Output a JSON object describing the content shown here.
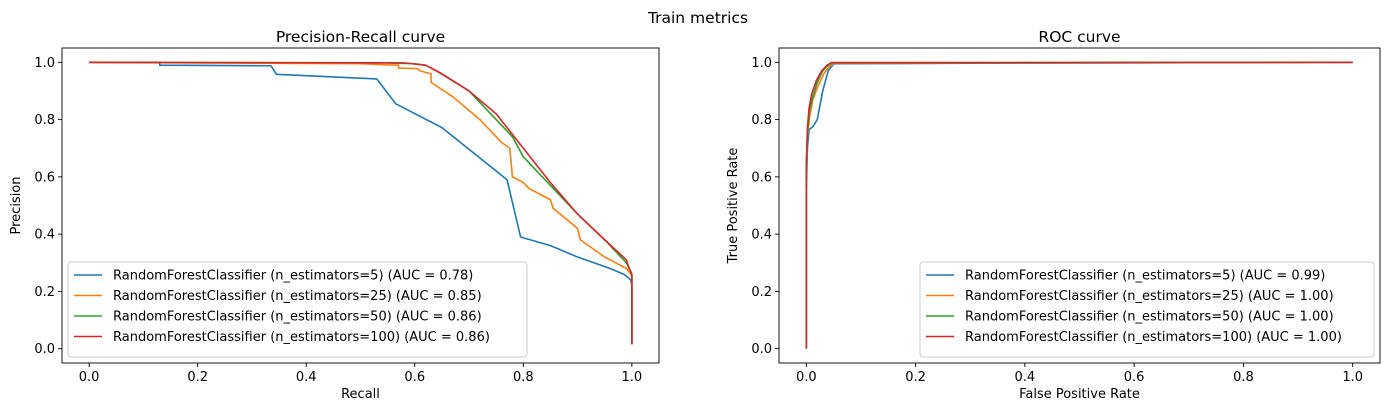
{
  "figure": {
    "suptitle": "Train metrics"
  },
  "colors": {
    "blue": "#1f77b4",
    "orange": "#ff7f0e",
    "green": "#2ca02c",
    "red": "#d62728"
  },
  "chart_data": [
    {
      "type": "line",
      "title": "Precision-Recall curve",
      "xlabel": "Recall",
      "ylabel": "Precision",
      "xlim": [
        -0.05,
        1.05
      ],
      "ylim": [
        -0.05,
        1.05
      ],
      "xticks": [
        0.0,
        0.2,
        0.4,
        0.6,
        0.8,
        1.0
      ],
      "yticks": [
        0.0,
        0.2,
        0.4,
        0.6,
        0.8,
        1.0
      ],
      "xtick_labels": [
        "0.0",
        "0.2",
        "0.4",
        "0.6",
        "0.8",
        "1.0"
      ],
      "ytick_labels": [
        "0.0",
        "0.2",
        "0.4",
        "0.6",
        "0.8",
        "1.0"
      ],
      "legend_position": "lower-left",
      "series": [
        {
          "name": "RandomForestClassifier (n_estimators=5) (AUC = 0.78)",
          "color": "#1f77b4",
          "x": [
            0.0,
            0.13,
            0.13,
            0.335,
            0.345,
            0.53,
            0.565,
            0.65,
            0.77,
            0.795,
            0.85,
            0.9,
            0.96,
            0.985,
            0.992,
            0.998,
            1.0,
            1.0
          ],
          "y": [
            1.0,
            1.0,
            0.99,
            0.988,
            0.958,
            0.942,
            0.855,
            0.772,
            0.59,
            0.39,
            0.36,
            0.32,
            0.28,
            0.26,
            0.25,
            0.24,
            0.22,
            0.015
          ]
        },
        {
          "name": "RandomForestClassifier (n_estimators=25) (AUC = 0.85)",
          "color": "#ff7f0e",
          "x": [
            0.0,
            0.5,
            0.57,
            0.57,
            0.605,
            0.61,
            0.62,
            0.63,
            0.63,
            0.67,
            0.72,
            0.76,
            0.775,
            0.78,
            0.8,
            0.81,
            0.85,
            0.855,
            0.9,
            0.905,
            0.95,
            0.99,
            0.998,
            1.0,
            1.0
          ],
          "y": [
            1.0,
            0.995,
            0.99,
            0.98,
            0.978,
            0.97,
            0.965,
            0.96,
            0.93,
            0.88,
            0.8,
            0.72,
            0.7,
            0.6,
            0.58,
            0.56,
            0.52,
            0.49,
            0.42,
            0.38,
            0.32,
            0.28,
            0.26,
            0.25,
            0.015
          ]
        },
        {
          "name": "RandomForestClassifier (n_estimators=50) (AUC = 0.86)",
          "color": "#2ca02c",
          "x": [
            0.0,
            0.55,
            0.6,
            0.62,
            0.64,
            0.7,
            0.78,
            0.8,
            0.86,
            0.9,
            0.95,
            0.99,
            0.998,
            1.0,
            1.0
          ],
          "y": [
            1.0,
            0.998,
            0.995,
            0.99,
            0.97,
            0.9,
            0.74,
            0.67,
            0.55,
            0.47,
            0.38,
            0.3,
            0.27,
            0.26,
            0.015
          ]
        },
        {
          "name": "RandomForestClassifier (n_estimators=100) (AUC = 0.86)",
          "color": "#d62728",
          "x": [
            0.0,
            0.58,
            0.62,
            0.65,
            0.7,
            0.75,
            0.8,
            0.85,
            0.9,
            0.95,
            0.99,
            0.995,
            1.0,
            1.0
          ],
          "y": [
            1.0,
            0.998,
            0.99,
            0.96,
            0.9,
            0.82,
            0.7,
            0.58,
            0.47,
            0.38,
            0.31,
            0.28,
            0.26,
            0.015
          ]
        }
      ]
    },
    {
      "type": "line",
      "title": "ROC curve",
      "xlabel": "False Positive Rate",
      "ylabel": "True Positive Rate",
      "xlim": [
        -0.05,
        1.05
      ],
      "ylim": [
        -0.05,
        1.05
      ],
      "xticks": [
        0.0,
        0.2,
        0.4,
        0.6,
        0.8,
        1.0
      ],
      "yticks": [
        0.0,
        0.2,
        0.4,
        0.6,
        0.8,
        1.0
      ],
      "xtick_labels": [
        "0.0",
        "0.2",
        "0.4",
        "0.6",
        "0.8",
        "1.0"
      ],
      "ytick_labels": [
        "0.0",
        "0.2",
        "0.4",
        "0.6",
        "0.8",
        "1.0"
      ],
      "legend_position": "lower-right",
      "series": [
        {
          "name": "RandomForestClassifier (n_estimators=5) (AUC = 0.99)",
          "color": "#1f77b4",
          "x": [
            0.0,
            0.0,
            0.002,
            0.005,
            0.012,
            0.02,
            0.03,
            0.04,
            0.05,
            0.3,
            1.0
          ],
          "y": [
            0.0,
            0.55,
            0.7,
            0.765,
            0.775,
            0.8,
            0.9,
            0.97,
            0.995,
            0.997,
            1.0
          ]
        },
        {
          "name": "RandomForestClassifier (n_estimators=25) (AUC = 1.00)",
          "color": "#ff7f0e",
          "x": [
            0.0,
            0.0,
            0.002,
            0.006,
            0.012,
            0.022,
            0.032,
            0.042,
            0.05,
            1.0
          ],
          "y": [
            0.0,
            0.6,
            0.74,
            0.81,
            0.87,
            0.92,
            0.96,
            0.985,
            0.997,
            1.0
          ]
        },
        {
          "name": "RandomForestClassifier (n_estimators=50) (AUC = 1.00)",
          "color": "#2ca02c",
          "x": [
            0.0,
            0.0,
            0.002,
            0.006,
            0.012,
            0.02,
            0.03,
            0.04,
            0.048,
            1.0
          ],
          "y": [
            0.0,
            0.62,
            0.75,
            0.83,
            0.88,
            0.93,
            0.97,
            0.99,
            0.998,
            1.0
          ]
        },
        {
          "name": "RandomForestClassifier (n_estimators=100) (AUC = 1.00)",
          "color": "#d62728",
          "x": [
            0.0,
            0.0,
            0.002,
            0.005,
            0.01,
            0.018,
            0.028,
            0.038,
            0.046,
            1.0
          ],
          "y": [
            0.0,
            0.65,
            0.77,
            0.84,
            0.89,
            0.935,
            0.97,
            0.99,
            0.999,
            1.0
          ]
        }
      ]
    }
  ]
}
